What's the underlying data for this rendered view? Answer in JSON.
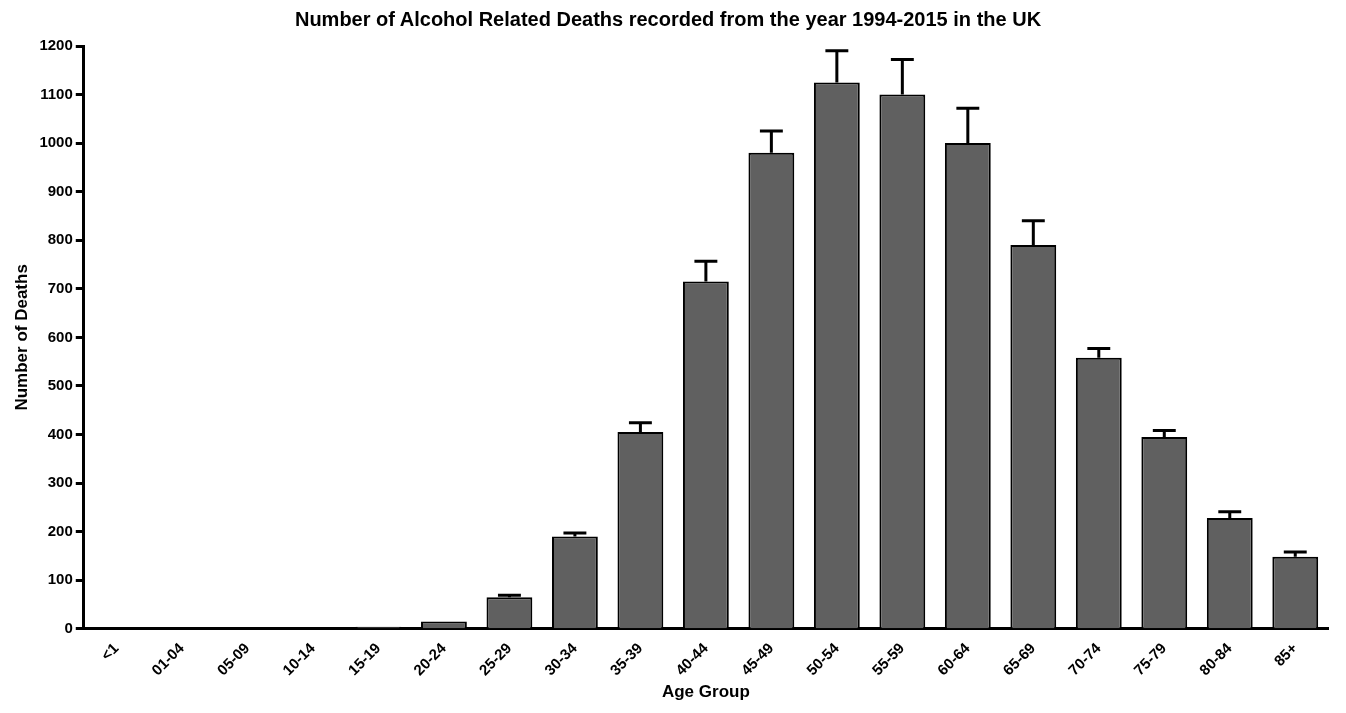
{
  "chart_data": {
    "type": "bar",
    "title": "Number of Alcohol Related Deaths recorded from the year 1994-2015 in the UK",
    "xlabel": "Age Group",
    "ylabel": "Number of Deaths",
    "categories": [
      "<1",
      "01-04",
      "05-09",
      "10-14",
      "15-19",
      "20-24",
      "25-29",
      "30-34",
      "35-39",
      "40-44",
      "45-49",
      "50-54",
      "55-59",
      "60-64",
      "65-69",
      "70-74",
      "75-79",
      "80-84",
      "85+"
    ],
    "values": [
      1,
      0,
      0,
      0,
      4,
      15,
      65,
      190,
      405,
      715,
      980,
      1125,
      1100,
      1000,
      790,
      558,
      395,
      228,
      148
    ],
    "errors": [
      null,
      null,
      null,
      null,
      null,
      null,
      [
        65,
        69
      ],
      [
        190,
        197
      ],
      [
        405,
        424
      ],
      [
        715,
        757
      ],
      [
        980,
        1025
      ],
      [
        1125,
        1190
      ],
      [
        1100,
        1172
      ],
      [
        1000,
        1072
      ],
      [
        790,
        840
      ],
      [
        558,
        577
      ],
      [
        395,
        408
      ],
      [
        228,
        241
      ],
      [
        148,
        158
      ]
    ],
    "color": "#606060",
    "ylim": [
      0,
      1200
    ],
    "yticks": [
      0,
      100,
      200,
      300,
      400,
      500,
      600,
      700,
      800,
      900,
      1000,
      1100,
      1200
    ],
    "grid": false,
    "legend": false
  }
}
